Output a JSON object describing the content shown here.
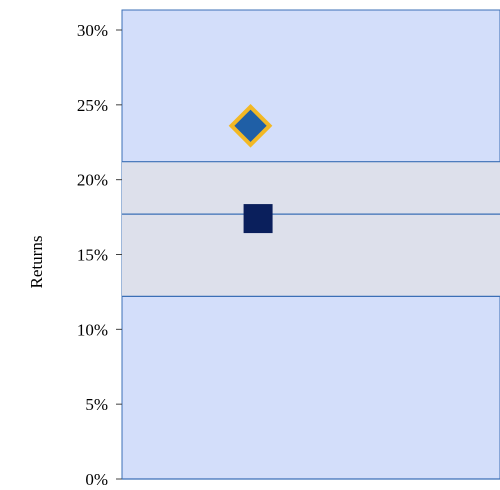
{
  "chart_data": {
    "type": "scatter",
    "title": "",
    "xlabel": "",
    "ylabel": "Returns",
    "ylim": [
      0,
      0.3
    ],
    "yticks": [
      {
        "value": 0.0,
        "label": "0%"
      },
      {
        "value": 0.05,
        "label": "5%"
      },
      {
        "value": 0.1,
        "label": "10%"
      },
      {
        "value": 0.15,
        "label": "15%"
      },
      {
        "value": 0.2,
        "label": "20%"
      },
      {
        "value": 0.25,
        "label": "25%"
      },
      {
        "value": 0.3,
        "label": "30%"
      }
    ],
    "grid": false,
    "band": {
      "low": 0.122,
      "mid": 0.177,
      "high": 0.212
    },
    "series": [
      {
        "marker": "diamond",
        "x": 0.34,
        "y": 0.236,
        "color": "#1F5FA6",
        "edge": "#F2B824"
      },
      {
        "marker": "square",
        "x": 0.36,
        "y": 0.174,
        "color": "#0A1F5C",
        "edge": "#0A1F5C"
      }
    ],
    "colors": {
      "plot_background": "#D3DEFA",
      "band_fill": "#DDE0EB",
      "lines": "#3B6FB6"
    }
  }
}
